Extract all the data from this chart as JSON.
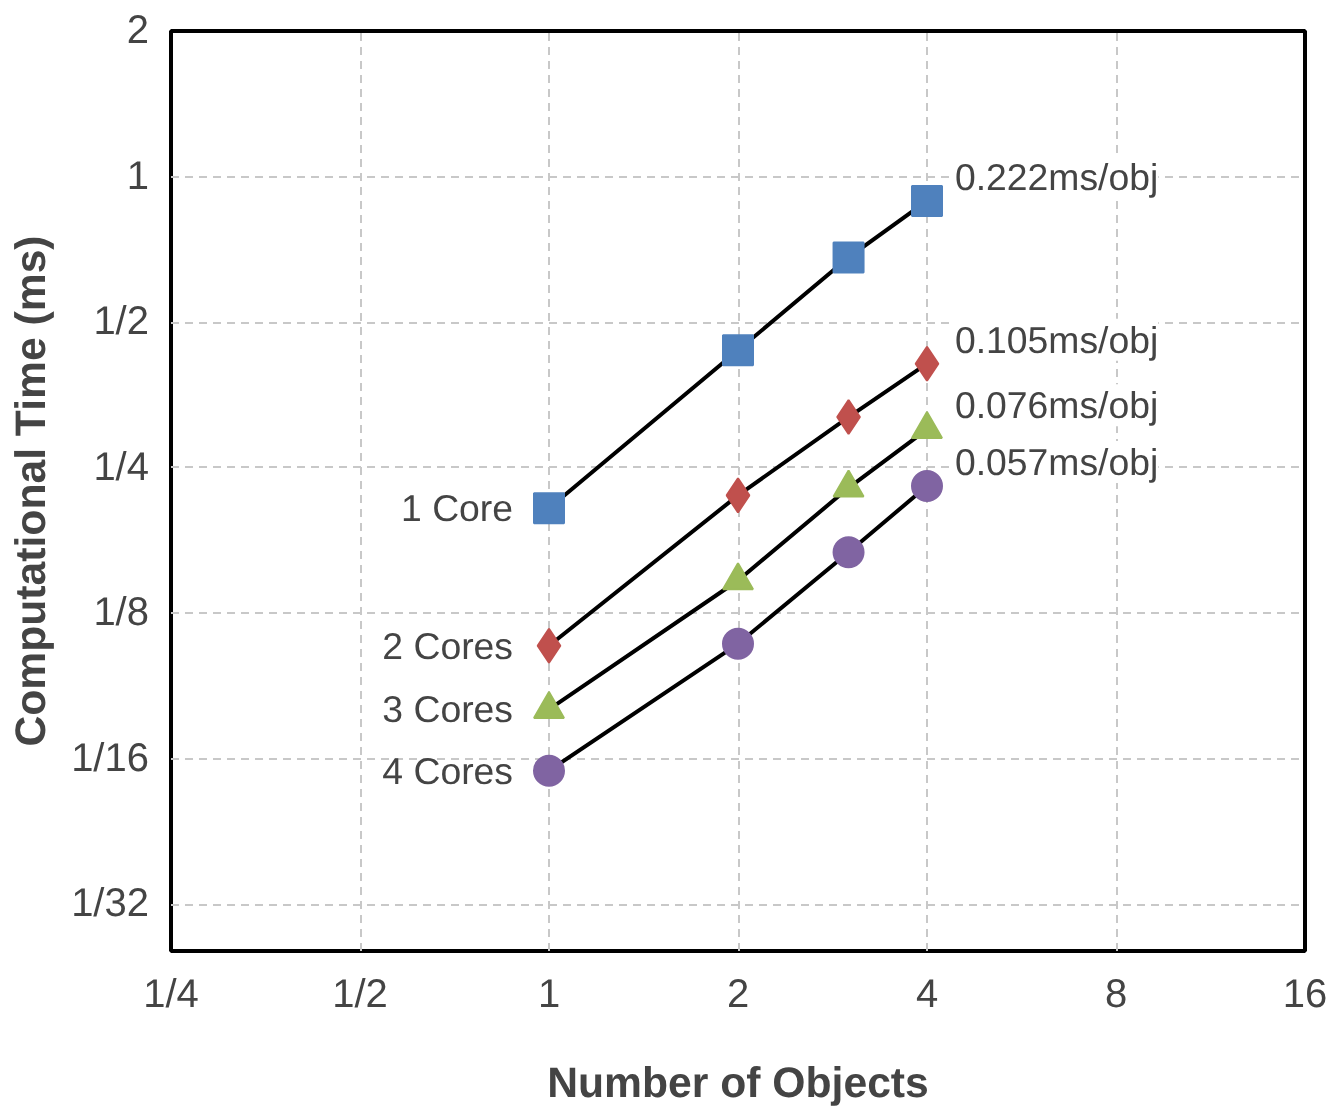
{
  "chart_data": {
    "type": "line",
    "xlabel": "Number of Objects",
    "ylabel": "Computational Time (ms)",
    "log": "xy",
    "grid": true,
    "xlim": [
      0.25,
      16
    ],
    "ylim": [
      0.025,
      2
    ],
    "xticks": [
      {
        "value": 0.25,
        "label": "1/4"
      },
      {
        "value": 0.5,
        "label": "1/2"
      },
      1,
      2,
      4,
      8,
      16
    ],
    "yticks": [
      {
        "value": 0.03125,
        "label": "1/32"
      },
      {
        "value": 0.0625,
        "label": "1/16"
      },
      {
        "value": 0.125,
        "label": "1/8"
      },
      {
        "value": 0.25,
        "label": "1/4"
      },
      {
        "value": 0.5,
        "label": "1/2"
      },
      1,
      2
    ],
    "x": [
      1,
      2,
      3,
      4
    ],
    "series": [
      {
        "name": "1 Core",
        "color": "#4f81bd",
        "marker": "square",
        "values": [
          0.206,
          0.437,
          0.68,
          0.89
        ]
      },
      {
        "name": "2 Cores",
        "color": "#c0504d",
        "marker": "diamond",
        "values": [
          0.107,
          0.219,
          0.318,
          0.41
        ]
      },
      {
        "name": "3 Cores",
        "color": "#9bbb59",
        "marker": "triangle",
        "values": [
          0.079,
          0.146,
          0.227,
          0.3
        ]
      },
      {
        "name": "4 Cores",
        "color": "#8064a2",
        "marker": "circle",
        "values": [
          0.059,
          0.108,
          0.167,
          0.229
        ]
      }
    ],
    "annotations": [
      "0.222ms/obj",
      "0.105ms/obj",
      "0.076ms/obj",
      "0.057ms/obj"
    ]
  }
}
